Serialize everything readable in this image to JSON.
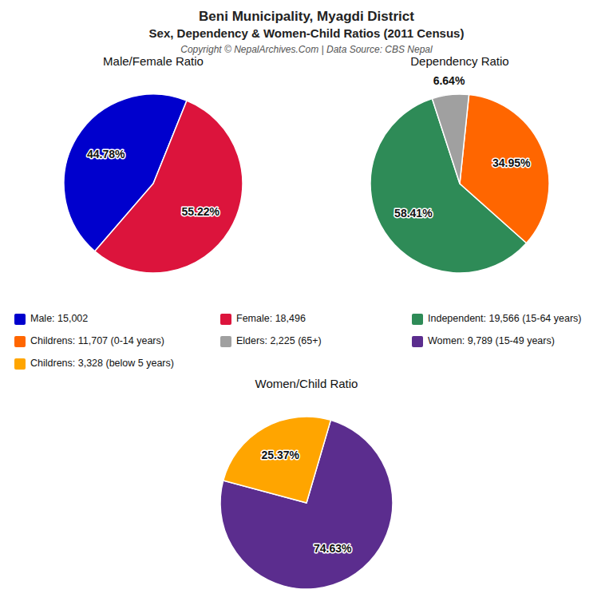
{
  "title": "Beni Municipality, Myagdi District",
  "subtitle": "Sex, Dependency & Women-Child Ratios (2011 Census)",
  "annotations": [
    "Copyright © NepalArchives.Com | Data Source: CBS Nepal"
  ],
  "chart_data": [
    {
      "type": "pie",
      "title": "Male/Female Ratio",
      "categories": [
        "Male: 15,002",
        "Female: 18,496"
      ],
      "values": [
        44.78,
        55.22
      ],
      "value_labels": [
        "44.78%",
        "55.22%"
      ],
      "colors": [
        "#0000CD",
        "#DC143C"
      ],
      "data_labels": true,
      "legend": "bottom"
    },
    {
      "type": "pie",
      "title": "Dependency Ratio",
      "categories": [
        "Independent: 19,566 (15-64 years)",
        "Childrens: 11,707 (0-14 years)",
        "Elders: 2,225 (65+)"
      ],
      "values": [
        58.41,
        34.95,
        6.64
      ],
      "value_labels": [
        "58.41%",
        "34.95%",
        "6.64%"
      ],
      "colors": [
        "#2E8B57",
        "#FF6600",
        "#A0A0A0"
      ],
      "data_labels": true,
      "legend": "bottom"
    },
    {
      "type": "pie",
      "title": "Women/Child Ratio",
      "categories": [
        "Women: 9,789 (15-49 years)",
        "Childrens: 3,328 (below 5 years)"
      ],
      "values": [
        74.63,
        25.37
      ],
      "value_labels": [
        "74.63%",
        "25.37%"
      ],
      "colors": [
        "#5B2D8E",
        "#FFA500"
      ],
      "data_labels": true,
      "legend": "top"
    }
  ]
}
